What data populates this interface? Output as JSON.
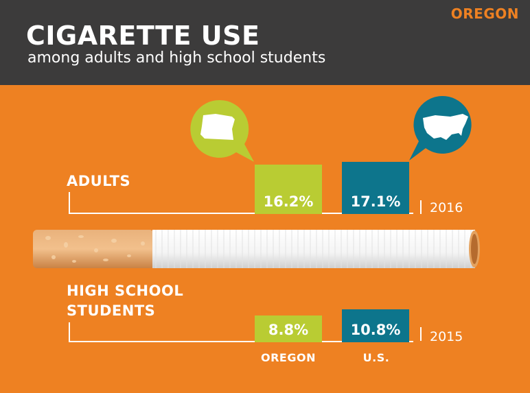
{
  "header": {
    "state": "OREGON",
    "title": "CIGARETTE USE",
    "subtitle": "among adults and high school students"
  },
  "colors": {
    "background": "#ee8122",
    "header": "#3c3b3b",
    "oregon": "#b9cc33",
    "us": "#0d758c"
  },
  "icons": {
    "oregon_bubble": "oregon-state-map-icon",
    "us_bubble": "us-map-icon"
  },
  "chart_data": {
    "type": "bar",
    "categories": [
      "OREGON",
      "U.S."
    ],
    "groups": [
      {
        "label": "ADULTS",
        "year": "2016",
        "values": [
          16.2,
          17.1
        ],
        "value_labels": [
          "16.2%",
          "17.1%"
        ]
      },
      {
        "label": "HIGH SCHOOL STUDENTS",
        "year": "2015",
        "values": [
          8.8,
          10.8
        ],
        "value_labels": [
          "8.8%",
          "10.8%"
        ]
      }
    ],
    "unit": "%",
    "ylim": [
      0,
      17.1
    ]
  },
  "labels": {
    "adults": "ADULTS",
    "hs_line1": "HIGH SCHOOL",
    "hs_line2": "STUDENTS",
    "adults_year": "2016",
    "hs_year": "2015",
    "oregon": "OREGON",
    "us": "U.S."
  }
}
